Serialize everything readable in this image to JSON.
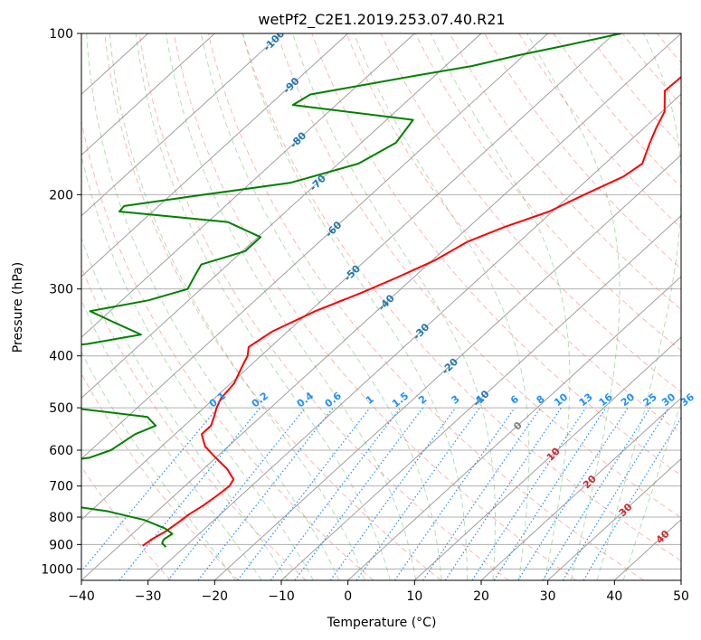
{
  "chart_data": {
    "type": "skew-t log-p",
    "title": "wetPf2_C2E1.2019.253.07.40.R21",
    "xlabel": "Temperature (°C)",
    "ylabel": "Pressure (hPa)",
    "xlim": [
      -40,
      50
    ],
    "ylim": [
      1050,
      100
    ],
    "yscale": "log",
    "grid": true,
    "x_ticks": [
      -40,
      -30,
      -20,
      -10,
      0,
      10,
      20,
      30,
      40,
      50
    ],
    "x_tick_labels": [
      "−40",
      "−30",
      "−20",
      "−10",
      "0",
      "10",
      "20",
      "30",
      "40",
      "50"
    ],
    "y_ticks": [
      100,
      200,
      300,
      400,
      500,
      600,
      700,
      800,
      900,
      1000
    ],
    "y_tick_labels": [
      "100",
      "200",
      "300",
      "400",
      "500",
      "600",
      "700",
      "800",
      "900",
      "1000"
    ],
    "colors": {
      "temperature": "#ff0000",
      "dewpoint": "#008000",
      "isotherm": "#a0a0a0",
      "dry_adiabat": "#fa8072",
      "moist_adiabat": "#2ca02c",
      "mixing_ratio": "#1e90ff",
      "iso_label_cold": "#1f77b4",
      "iso_label_warm": "#d62728",
      "iso_label_zero": "#808080"
    },
    "isotherm_labels": [
      {
        "t": -100,
        "p": 103
      },
      {
        "t": -90,
        "p": 125
      },
      {
        "t": -80,
        "p": 158
      },
      {
        "t": -70,
        "p": 190
      },
      {
        "t": -60,
        "p": 232
      },
      {
        "t": -50,
        "p": 280
      },
      {
        "t": -40,
        "p": 318
      },
      {
        "t": -30,
        "p": 360
      },
      {
        "t": -20,
        "p": 418
      },
      {
        "t": -10,
        "p": 480
      },
      {
        "t": 0,
        "p": 540
      },
      {
        "t": 10,
        "p": 610
      },
      {
        "t": 20,
        "p": 687
      },
      {
        "t": 30,
        "p": 775
      },
      {
        "t": 40,
        "p": 870
      }
    ],
    "mixing_ratio_lines": [
      0.1,
      0.2,
      0.4,
      0.6,
      1,
      1.5,
      2,
      3,
      4,
      6,
      8,
      10,
      13,
      16,
      20,
      25,
      30,
      36
    ],
    "mixing_ratio_labels": [
      "0.1",
      "0.2",
      "0.4",
      "0.6",
      "1",
      "1.5",
      "2",
      "3",
      "4",
      "6",
      "8",
      "10",
      "13",
      "16",
      "20",
      "25",
      "30",
      "36"
    ],
    "series": [
      {
        "points": [
          [
            100,
            -36.2
          ],
          [
            105,
            -34.9
          ],
          [
            110,
            -33.4
          ],
          [
            115,
            -32.4
          ],
          [
            120,
            -32.8
          ],
          [
            128,
            -33.0
          ],
          [
            140,
            -29.6
          ],
          [
            150,
            -28.2
          ],
          [
            160,
            -26.7
          ],
          [
            175,
            -24.4
          ],
          [
            185,
            -25.1
          ],
          [
            200,
            -28.0
          ],
          [
            215,
            -30.5
          ],
          [
            230,
            -34.7
          ],
          [
            245,
            -37.8
          ],
          [
            265,
            -39.6
          ],
          [
            285,
            -42.4
          ],
          [
            305,
            -45.3
          ],
          [
            330,
            -49.2
          ],
          [
            360,
            -52.3
          ],
          [
            385,
            -53.3
          ],
          [
            400,
            -52.0
          ],
          [
            420,
            -51.0
          ],
          [
            450,
            -49.5
          ],
          [
            480,
            -49.0
          ],
          [
            500,
            -48.1
          ],
          [
            520,
            -47.0
          ],
          [
            540,
            -46.0
          ],
          [
            560,
            -46.0
          ],
          [
            590,
            -43.5
          ],
          [
            620,
            -40.0
          ],
          [
            650,
            -36.5
          ],
          [
            680,
            -33.8
          ],
          [
            700,
            -33.3
          ],
          [
            730,
            -33.6
          ],
          [
            760,
            -34.0
          ],
          [
            790,
            -34.7
          ],
          [
            820,
            -35.0
          ],
          [
            850,
            -35.4
          ],
          [
            880,
            -36.2
          ],
          [
            905,
            -36.5
          ]
        ]
      },
      {
        "points": [
          [
            100,
            -49.0
          ],
          [
            105,
            -55.0
          ],
          [
            110,
            -61.0
          ],
          [
            115,
            -66.0
          ],
          [
            120,
            -73.0
          ],
          [
            130,
            -85.6
          ],
          [
            136,
            -86.5
          ],
          [
            145,
            -66.0
          ],
          [
            160,
            -64.8
          ],
          [
            175,
            -67.0
          ],
          [
            190,
            -74.0
          ],
          [
            200,
            -85.0
          ],
          [
            210,
            -95.2
          ],
          [
            215,
            -95.0
          ],
          [
            225,
            -77.0
          ],
          [
            240,
            -69.6
          ],
          [
            255,
            -69.6
          ],
          [
            270,
            -74.0
          ],
          [
            285,
            -73.0
          ],
          [
            300,
            -72.0
          ],
          [
            315,
            -76.0
          ],
          [
            330,
            -83.0
          ],
          [
            345,
            -78.0
          ],
          [
            365,
            -71.5
          ],
          [
            380,
            -78.0
          ],
          [
            395,
            -89.7
          ],
          [
            400,
            -92.0
          ],
          [
            487,
            -92.0
          ],
          [
            500,
            -70.0
          ],
          [
            520,
            -57.0
          ],
          [
            540,
            -54.3
          ],
          [
            560,
            -56.0
          ],
          [
            580,
            -56.5
          ],
          [
            600,
            -57.0
          ],
          [
            620,
            -59.0
          ],
          [
            640,
            -66.0
          ],
          [
            650,
            -71.0
          ],
          [
            710,
            -84.0
          ],
          [
            720,
            -72.0
          ],
          [
            750,
            -58.5
          ],
          [
            780,
            -47.5
          ],
          [
            810,
            -40.5
          ],
          [
            840,
            -36.0
          ],
          [
            860,
            -34.0
          ],
          [
            880,
            -34.4
          ],
          [
            895,
            -34.0
          ],
          [
            910,
            -32.8
          ]
        ]
      }
    ]
  }
}
